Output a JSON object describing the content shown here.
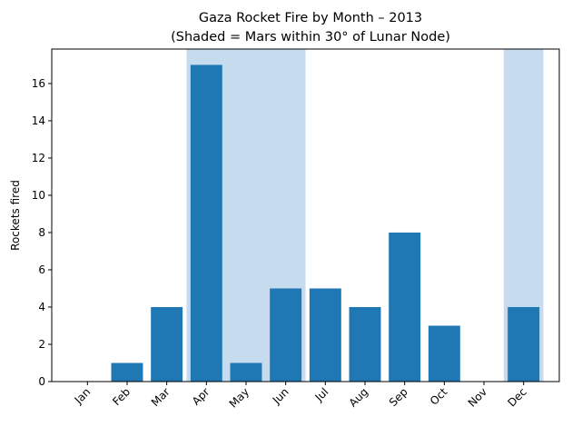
{
  "chart_data": {
    "type": "bar",
    "title": "Gaza Rocket Fire by Month – 2013",
    "subtitle": "(Shaded = Mars within 30° of Lunar Node)",
    "ylabel": "Rockets fired",
    "xlabel": "",
    "categories": [
      "Jan",
      "Feb",
      "Mar",
      "Apr",
      "May",
      "Jun",
      "Jul",
      "Aug",
      "Sep",
      "Oct",
      "Nov",
      "Dec"
    ],
    "values": [
      0,
      1,
      4,
      17,
      1,
      5,
      5,
      4,
      8,
      3,
      0,
      4
    ],
    "shaded_categories": [
      "Apr",
      "May",
      "Jun",
      "Dec"
    ],
    "ylim": [
      0,
      17.85
    ],
    "yticks": [
      0,
      2,
      4,
      6,
      8,
      10,
      12,
      14,
      16
    ],
    "grid": false,
    "legend": "none",
    "colors": {
      "bar": "#1f77b4",
      "shade": "#c6dbed"
    }
  }
}
